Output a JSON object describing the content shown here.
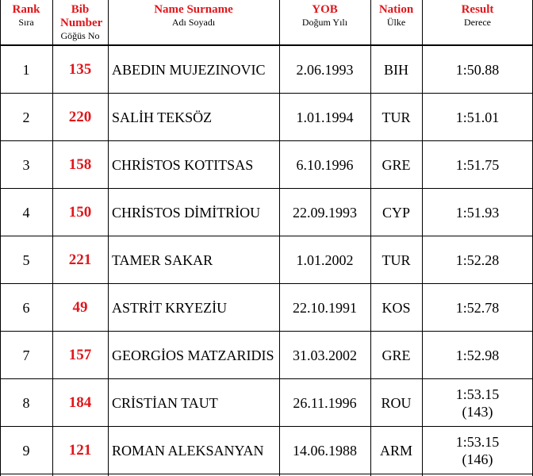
{
  "table": {
    "columns": [
      {
        "title": "Rank",
        "subtitle": "Sıra"
      },
      {
        "title": "Bib Number",
        "subtitle": "Göğüs No"
      },
      {
        "title": "Name Surname",
        "subtitle": "Adı Soyadı"
      },
      {
        "title": "YOB",
        "subtitle": "Doğum Yılı"
      },
      {
        "title": "Nation",
        "subtitle": "Ülke"
      },
      {
        "title": "Result",
        "subtitle": "Derece"
      }
    ],
    "rows": [
      {
        "rank": 1,
        "bib": 135,
        "name": "ABEDIN MUJEZINOVIC",
        "yob": "2.06.1993",
        "nation": "BIH",
        "result": "1:50.88"
      },
      {
        "rank": 2,
        "bib": 220,
        "name": "SALİH TEKSÖZ",
        "yob": "1.01.1994",
        "nation": "TUR",
        "result": "1:51.01"
      },
      {
        "rank": 3,
        "bib": 158,
        "name": "CHRİSTOS KOTITSAS",
        "yob": "6.10.1996",
        "nation": "GRE",
        "result": "1:51.75"
      },
      {
        "rank": 4,
        "bib": 150,
        "name": "CHRİSTOS DİMİTRİOU",
        "yob": "22.09.1993",
        "nation": "CYP",
        "result": "1:51.93"
      },
      {
        "rank": 5,
        "bib": 221,
        "name": "TAMER SAKAR",
        "yob": "1.01.2002",
        "nation": "TUR",
        "result": "1:52.28"
      },
      {
        "rank": 6,
        "bib": 49,
        "name": "ASTRİT KRYEZİU",
        "yob": "22.10.1991",
        "nation": "KOS",
        "result": "1:52.78"
      },
      {
        "rank": 7,
        "bib": 157,
        "name": "GEORGİOS MATZARIDIS",
        "yob": "31.03.2002",
        "nation": "GRE",
        "result": "1:52.98"
      },
      {
        "rank": 8,
        "bib": 184,
        "name": "CRİSTİAN TAUT",
        "yob": "26.11.1996",
        "nation": "ROU",
        "result": "1:53.15",
        "result_note": "(143)"
      },
      {
        "rank": 9,
        "bib": 121,
        "name": "ROMAN ALEKSANYAN",
        "yob": "14.06.1988",
        "nation": "ARM",
        "result": "1:53.15",
        "result_note": "(146)"
      }
    ]
  }
}
